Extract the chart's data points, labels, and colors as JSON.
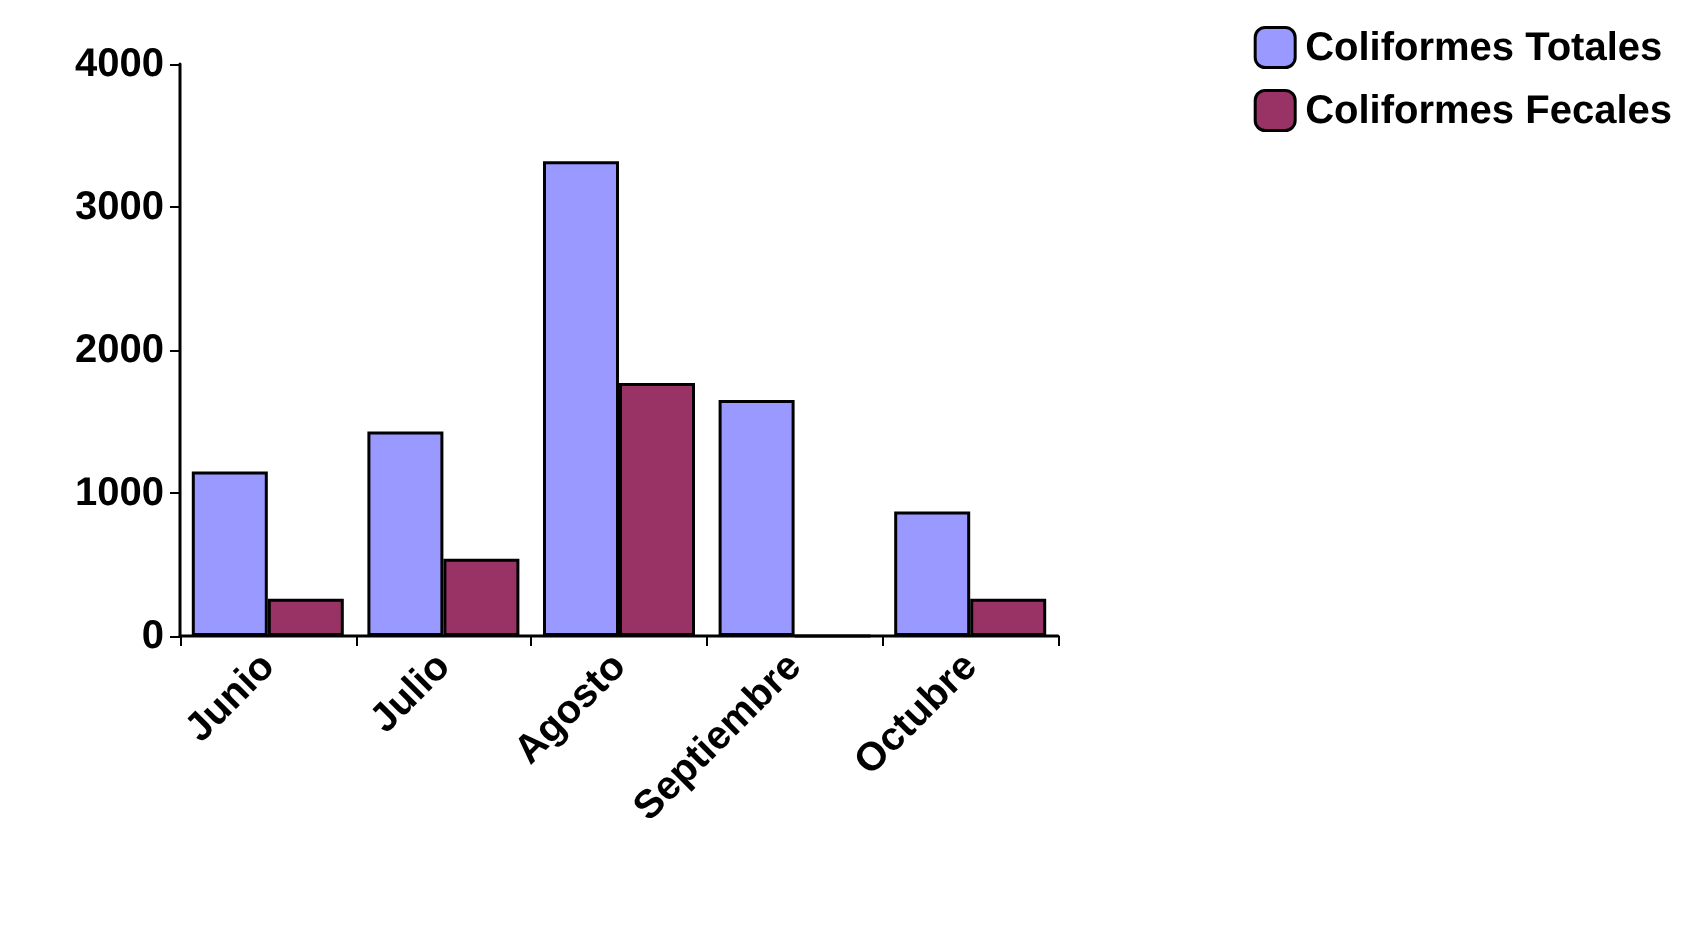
{
  "chart_data": {
    "type": "bar",
    "categories": [
      "Junio",
      "Julio",
      "Agosto",
      "Septiembre",
      "Octubre"
    ],
    "series": [
      {
        "name": "Coliformes Totales",
        "color": "#9999ff",
        "values": [
          1150,
          1430,
          3320,
          1650,
          870
        ]
      },
      {
        "name": "Coliformes Fecales",
        "color": "#993366",
        "values": [
          260,
          540,
          1770,
          0,
          260
        ]
      }
    ],
    "ylim": [
      0,
      4000
    ],
    "yticks": [
      0,
      1000,
      2000,
      3000,
      4000
    ],
    "grid": false,
    "legend": "top right"
  }
}
